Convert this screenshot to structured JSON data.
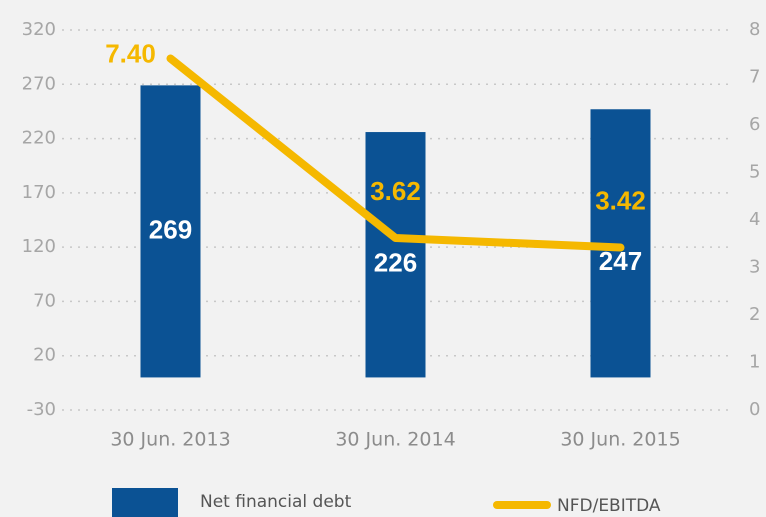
{
  "chart_data": {
    "type": "bar_line",
    "categories": [
      "30 Jun. 2013",
      "30 Jun. 2014",
      "30 Jun. 2015"
    ],
    "series": [
      {
        "name": "Net financial debt",
        "type": "bar",
        "color": "#0b5294",
        "values": [
          269,
          226,
          247
        ]
      },
      {
        "name": "NFD/EBITDA",
        "type": "line",
        "axis": "y2",
        "color": "#f5b800",
        "values": [
          7.4,
          3.62,
          3.42
        ],
        "value_labels": [
          "7.40",
          "3.62",
          "3.42"
        ]
      }
    ],
    "ylim": [
      -30,
      320
    ],
    "yticks": [
      -30,
      20,
      70,
      120,
      170,
      220,
      270,
      320
    ],
    "y2lim": [
      0,
      8
    ],
    "y2ticks": [
      0,
      1,
      2,
      3,
      4,
      5,
      6,
      7,
      8
    ],
    "grid": true,
    "legend": "bottom"
  }
}
